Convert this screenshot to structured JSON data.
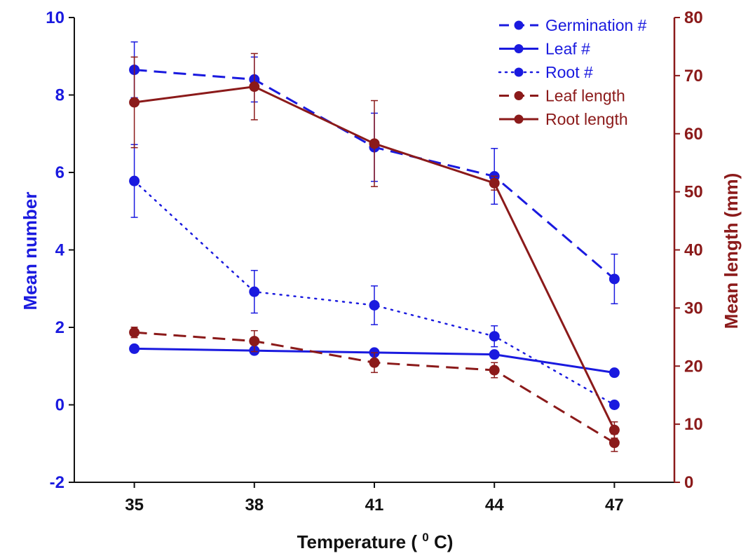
{
  "chart_data": {
    "type": "line",
    "xlabel": "Temperature",
    "xlabel_unit_prefix": "(",
    "xlabel_unit_sup": "0",
    "xlabel_unit_suffix": "C)",
    "x": [
      35,
      38,
      41,
      44,
      47
    ],
    "x_tick_labels": [
      "35",
      "38",
      "41",
      "44",
      "47"
    ],
    "xlim": [
      33.5,
      48.5
    ],
    "left_axis": {
      "label": "Mean number",
      "ylim": [
        -2,
        10
      ],
      "ticks": [
        -2,
        0,
        2,
        4,
        6,
        8,
        10
      ],
      "tick_labels": [
        "-2",
        "0",
        "2",
        "4",
        "6",
        "8",
        "10"
      ],
      "color": "#1a1adf"
    },
    "right_axis": {
      "label": "Mean length (mm)",
      "ylim": [
        0,
        80
      ],
      "ticks": [
        0,
        10,
        20,
        30,
        40,
        50,
        60,
        70,
        80
      ],
      "tick_labels": [
        "0",
        "10",
        "20",
        "30",
        "40",
        "50",
        "60",
        "70",
        "80"
      ],
      "color": "#8b1a1a"
    },
    "legend_position": "top-right",
    "series": [
      {
        "name": "Germination #",
        "axis": "left",
        "style": "dashed",
        "color": "#1a1adf",
        "values": [
          8.65,
          8.4,
          6.65,
          5.9,
          3.25
        ],
        "errors": [
          0.72,
          0.58,
          0.88,
          0.72,
          0.64
        ]
      },
      {
        "name": "Leaf #",
        "axis": "left",
        "style": "solid",
        "color": "#1a1adf",
        "values": [
          1.45,
          1.4,
          1.35,
          1.3,
          0.83
        ],
        "errors": [
          0.05,
          0.05,
          0.05,
          0.05,
          0.05
        ]
      },
      {
        "name": "Root #",
        "axis": "left",
        "style": "dotted",
        "color": "#1a1adf",
        "values": [
          5.78,
          2.92,
          2.57,
          1.77,
          0.0
        ],
        "errors": [
          0.94,
          0.55,
          0.5,
          0.27,
          0.05
        ]
      },
      {
        "name": "Leaf length",
        "axis": "right",
        "style": "dashed",
        "color": "#8b1a1a",
        "values": [
          25.8,
          24.3,
          20.6,
          19.3,
          6.8
        ],
        "errors": [
          0.9,
          1.8,
          1.7,
          1.3,
          1.5
        ]
      },
      {
        "name": "Root length",
        "axis": "right",
        "style": "solid",
        "color": "#8b1a1a",
        "values": [
          65.4,
          68.1,
          58.3,
          51.5,
          9.0
        ],
        "errors": [
          7.8,
          5.7,
          7.4,
          1.2,
          1.4
        ]
      }
    ]
  }
}
